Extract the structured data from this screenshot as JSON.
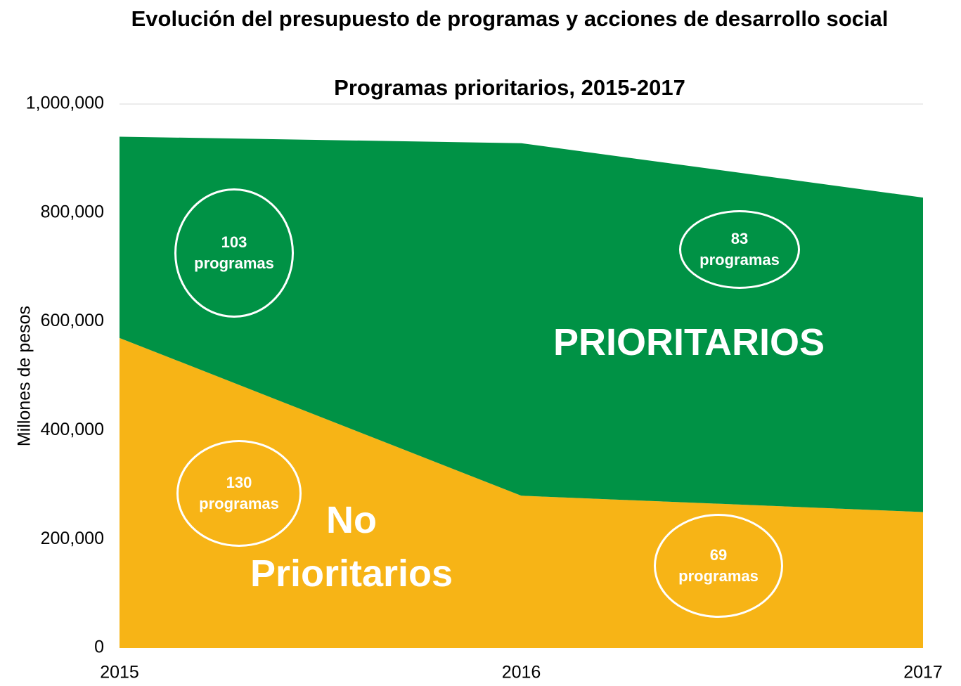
{
  "chart_data": {
    "type": "stacked_area",
    "title": "Evolución del presupuesto de programas y acciones de desarrollo social",
    "subtitle": "Programas prioritarios, 2015-2017",
    "y_label": "Millones de pesos",
    "x": [
      2015,
      2016,
      2017
    ],
    "xlim": [
      2015,
      2017
    ],
    "xticks": [
      2015,
      2016,
      2017
    ],
    "ylim": [
      0,
      1000000
    ],
    "yticks": [
      0,
      {
        "value": 200000,
        "label": "200,000"
      },
      {
        "value": 400000,
        "label": "400,000"
      },
      {
        "value": 600000,
        "label": "600,000"
      },
      {
        "value": 800000,
        "label": "800,000"
      },
      {
        "value": 1000000,
        "label": "1,000,000"
      }
    ],
    "grid": false,
    "series": [
      {
        "name": "No Prioritarios",
        "color": "#f7b416",
        "values": [
          570000,
          280000,
          250000
        ]
      },
      {
        "name": "PRIORITARIOS",
        "color": "#009245",
        "values": [
          370000,
          648000,
          578000
        ]
      }
    ],
    "annotations": [
      "103 programas",
      "83 programas",
      "130 programas",
      "69 programas"
    ]
  }
}
